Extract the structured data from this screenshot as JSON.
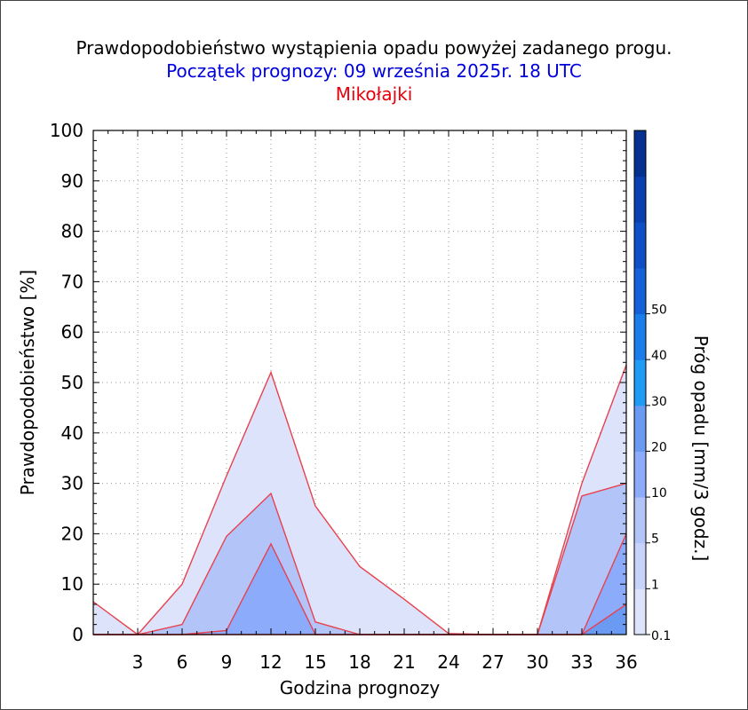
{
  "titles": {
    "line1": "Prawdopodobieństwo wystąpienia opadu powyżej zadanego progu.",
    "line2": "Początek prognozy: 09 września 2025r. 18 UTC",
    "line3": "Mikołajki"
  },
  "chart_data": {
    "type": "area",
    "xlabel": "Godzina prognozy",
    "ylabel": "Prawdopodobieństwo [%]",
    "colorbar_label": "Próg opadu [mm/3 godz.]",
    "xlim": [
      0,
      36
    ],
    "ylim": [
      0,
      100
    ],
    "x_ticks": [
      3,
      6,
      9,
      12,
      15,
      18,
      21,
      24,
      27,
      30,
      33,
      36
    ],
    "y_ticks": [
      0,
      10,
      20,
      30,
      40,
      50,
      60,
      70,
      80,
      90,
      100
    ],
    "colorbar_ticks": [
      "0.1",
      "1",
      "5",
      "10",
      "20",
      "30",
      "40",
      "50"
    ],
    "colorbar_colors": [
      "#dde3fa",
      "#c8d3f9",
      "#b3c4f8",
      "#8cabfb",
      "#6a9af2",
      "#1e9bf5",
      "#1b7ceb",
      "#1560d8",
      "#0e4fc6",
      "#0a3fb0",
      "#06308f"
    ],
    "x": [
      0,
      3,
      6,
      9,
      12,
      15,
      18,
      21,
      24,
      27,
      30,
      33,
      36
    ],
    "series": [
      {
        "threshold": "0.1",
        "color": "#dde3fa",
        "values": [
          6.5,
          0,
          10,
          31.5,
          52,
          25.5,
          13.5,
          7,
          0.2,
          0,
          0,
          30,
          53.5
        ]
      },
      {
        "threshold": "1",
        "color": "#b3c4f8",
        "values": [
          0,
          0,
          2,
          19.5,
          28,
          2.5,
          0,
          0,
          0,
          0,
          0,
          27.5,
          30
        ]
      },
      {
        "threshold": "5",
        "color": "#8cabfb",
        "values": [
          0,
          0,
          0,
          0.8,
          18,
          0,
          0,
          0,
          0,
          0,
          0,
          0,
          20
        ]
      },
      {
        "threshold": "10",
        "color": "#6a9af2",
        "values": [
          0,
          0,
          0,
          0,
          0,
          0,
          0,
          0,
          0,
          0,
          0,
          0,
          6
        ]
      }
    ],
    "line_color": "#e8414e",
    "grid": true
  }
}
